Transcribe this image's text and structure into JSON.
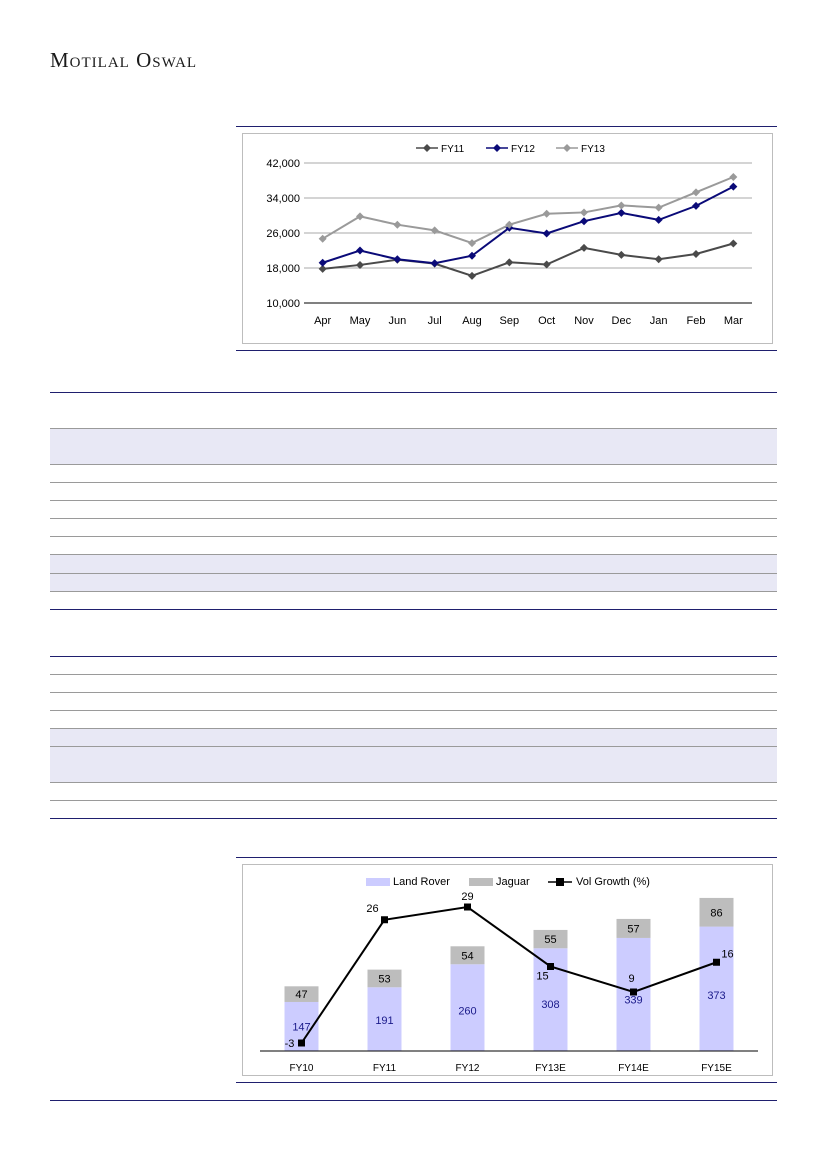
{
  "header": {
    "brand": "Motilal Oswal"
  },
  "chart_data": [
    {
      "type": "line",
      "categories": [
        "Apr",
        "May",
        "Jun",
        "Jul",
        "Aug",
        "Sep",
        "Oct",
        "Nov",
        "Dec",
        "Jan",
        "Feb",
        "Mar"
      ],
      "ylim": [
        10000,
        42000
      ],
      "yticks": [
        "10,000",
        "18,000",
        "26,000",
        "34,000",
        "42,000"
      ],
      "legend_position": "top",
      "grid": true,
      "series": [
        {
          "name": "FY11",
          "color": "#4a4a4a",
          "values": [
            17800,
            18700,
            19900,
            19000,
            16200,
            19300,
            18800,
            22600,
            21000,
            20000,
            21200,
            23600
          ]
        },
        {
          "name": "FY12",
          "color": "#0a0a78",
          "values": [
            19200,
            22000,
            20000,
            19100,
            20800,
            27200,
            25900,
            28700,
            30600,
            29000,
            32200,
            36600
          ]
        },
        {
          "name": "FY13",
          "color": "#9a9a9a",
          "values": [
            24700,
            29800,
            27900,
            26600,
            23700,
            27900,
            30400,
            30700,
            32300,
            31800,
            35300,
            38800
          ]
        }
      ]
    },
    {
      "type": "bar",
      "categories": [
        "FY10",
        "FY11",
        "FY12",
        "FY13E",
        "FY14E",
        "FY15E"
      ],
      "legend_position": "top",
      "series": [
        {
          "name": "Land Rover",
          "color": "#ccccff",
          "text_color": "#1a1a8a",
          "values": [
            147,
            191,
            260,
            308,
            339,
            373
          ]
        },
        {
          "name": "Jaguar",
          "color": "#bdbdbd",
          "text_color": "#000000",
          "values": [
            47,
            53,
            54,
            55,
            57,
            86
          ]
        },
        {
          "name": "Vol Growth (%)",
          "type": "line",
          "color": "#000000",
          "values": [
            -3,
            26,
            29,
            15,
            9,
            16
          ]
        }
      ]
    }
  ],
  "table_a": {
    "rows": [
      {
        "kind": "dark"
      },
      {
        "kind": "band_tall"
      },
      {
        "kind": "light"
      },
      {
        "kind": "light"
      },
      {
        "kind": "light"
      },
      {
        "kind": "light"
      },
      {
        "kind": "light"
      },
      {
        "kind": "band"
      },
      {
        "kind": "band"
      },
      {
        "kind": "dark"
      }
    ]
  }
}
